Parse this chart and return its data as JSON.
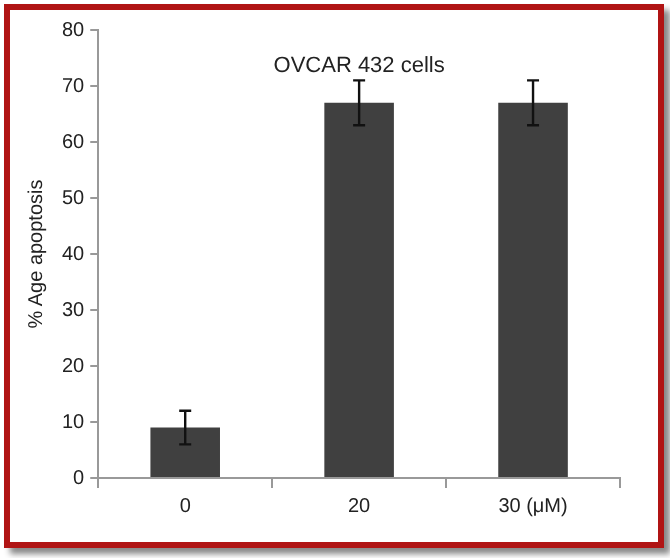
{
  "chart_data": {
    "type": "bar",
    "title": "OVCAR 432 cells",
    "ylabel": "% Age apoptosis",
    "categories": [
      "0",
      "20",
      "30 (μM)"
    ],
    "values": [
      9,
      67,
      67
    ],
    "errors": [
      3,
      4,
      4
    ],
    "color": "#404040",
    "ylim": [
      0,
      80
    ],
    "yticks": [
      0,
      10,
      20,
      30,
      40,
      50,
      60,
      70,
      80
    ],
    "grid": false,
    "legend": false
  }
}
